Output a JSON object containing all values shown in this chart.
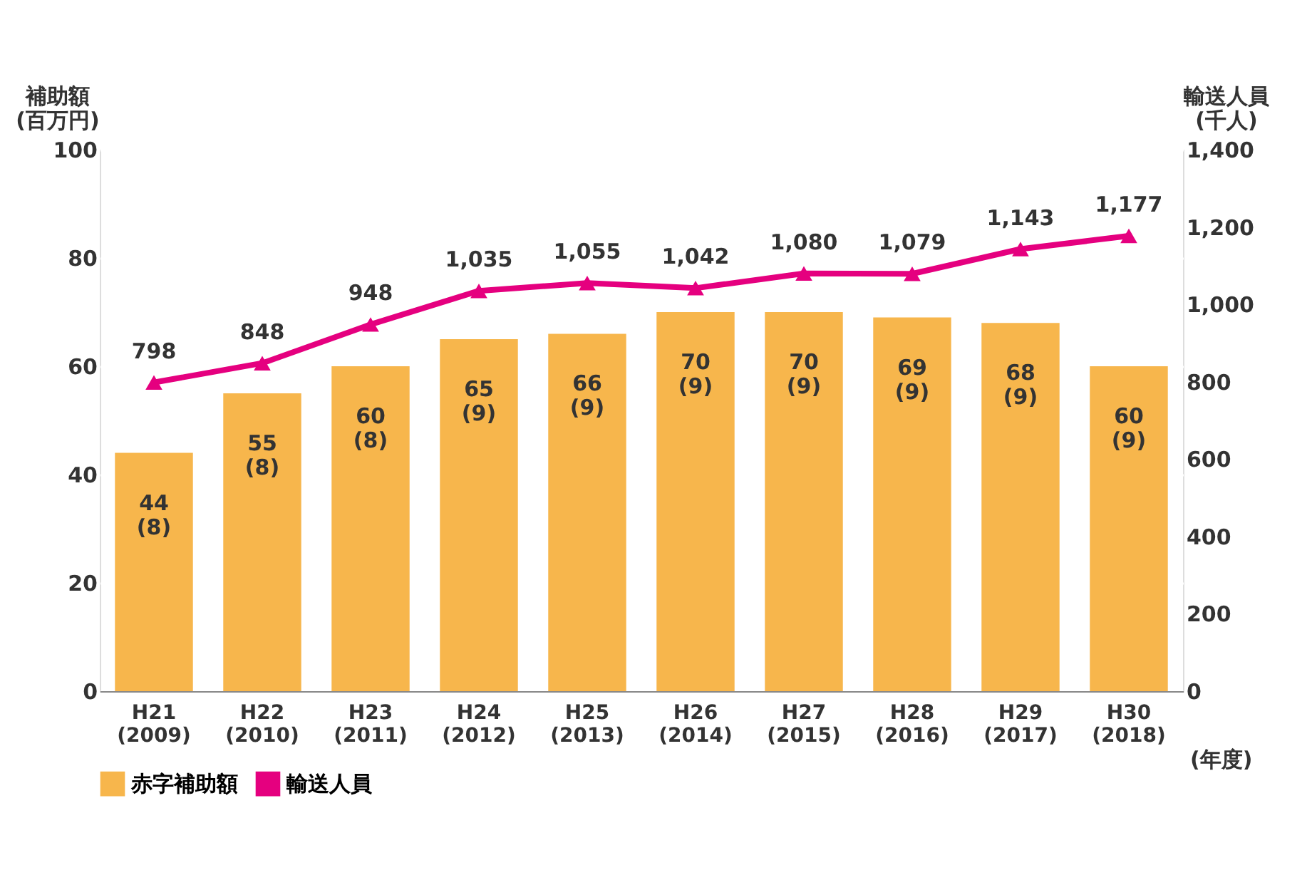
{
  "chart_data": {
    "type": "bar",
    "categories": [
      "H21\n(2009)",
      "H22\n(2010)",
      "H23\n(2011)",
      "H24\n(2012)",
      "H25\n(2013)",
      "H26\n(2014)",
      "H27\n(2015)",
      "H28\n(2016)",
      "H29\n(2017)",
      "H30\n(2018)"
    ],
    "xlabel": "(年度)",
    "ylabel": "補助額\n(百万円)",
    "y2label": "輸送人員\n(千人)",
    "series": [
      {
        "name": "赤字補助額",
        "color": "#f7b64c",
        "values": [
          44,
          55,
          60,
          65,
          66,
          70,
          70,
          69,
          68,
          60
        ],
        "value_labels": [
          "44\n(8)",
          "55\n(8)",
          "60\n(8)",
          "65\n(9)",
          "66\n(9)",
          "70\n(9)",
          "70\n(9)",
          "69\n(9)",
          "68\n(9)",
          "60\n(9)"
        ]
      },
      {
        "name": "輸送人員",
        "type": "line",
        "axis": "y2",
        "color": "#e5007f",
        "values": [
          798,
          848,
          948,
          1035,
          1055,
          1042,
          1080,
          1079,
          1143,
          1177
        ],
        "value_labels": [
          "798",
          "848",
          "948",
          "1,035",
          "1,055",
          "1,042",
          "1,080",
          "1,079",
          "1,143",
          "1,177"
        ]
      }
    ],
    "ylim": [
      0,
      100
    ],
    "yticks": [
      0,
      20,
      40,
      60,
      80,
      100
    ],
    "y2lim": [
      0,
      1400
    ],
    "y2ticks": [
      0,
      {
        "value": 200,
        "label": "200"
      },
      {
        "value": 400,
        "label": "400"
      },
      {
        "value": 600,
        "label": "600"
      },
      {
        "value": 800,
        "label": "800"
      },
      {
        "value": 1000,
        "label": "1,000"
      },
      {
        "value": 1200,
        "label": "1,200"
      },
      {
        "value": 1400,
        "label": "1,400"
      }
    ],
    "grid": "y",
    "legend": "bottom",
    "marker": "triangle"
  }
}
